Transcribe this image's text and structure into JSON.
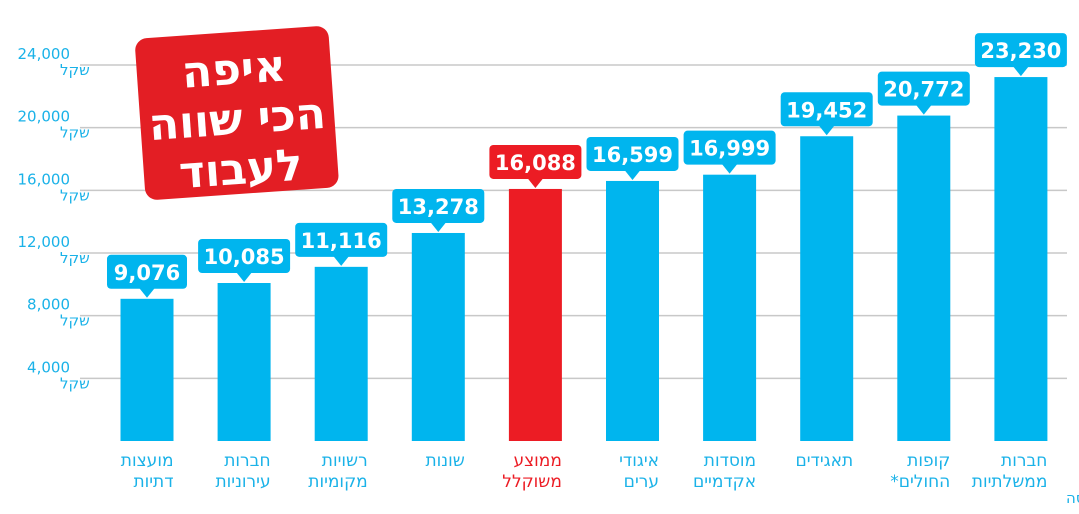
{
  "chart_data": {
    "type": "bar",
    "title": [
      "איפה",
      "הכי שווה",
      "לעבוד"
    ],
    "categories": [
      [
        "מועצות",
        "דתיות"
      ],
      [
        "חברות",
        "עירוניות"
      ],
      [
        "רשויות",
        "מקומיות"
      ],
      [
        "שונות"
      ],
      [
        "ממוצע",
        "משוקלל"
      ],
      [
        "איגודי",
        "ערים"
      ],
      [
        "מוסדות",
        "אקדמיים"
      ],
      [
        "תאגידים"
      ],
      [
        "קופות",
        "החולים*"
      ],
      [
        "חברות",
        "ממשלתיות"
      ]
    ],
    "values": [
      9076,
      10085,
      11116,
      13278,
      16088,
      16599,
      16999,
      19452,
      20772,
      23230
    ],
    "value_labels": [
      "9,076",
      "10,085",
      "11,116",
      "13,278",
      "16,088",
      "16,599",
      "16,999",
      "19,452",
      "20,772",
      "23,230"
    ],
    "highlight_index": 4,
    "ylim": [
      0,
      24000
    ],
    "yticks": [
      {
        "value": 24000,
        "label": "24,000",
        "unit": "שקל"
      },
      {
        "value": 20000,
        "label": "20,000",
        "unit": "שקל"
      },
      {
        "value": 16000,
        "label": "16,000",
        "unit": "שקל"
      },
      {
        "value": 12000,
        "label": "12,000",
        "unit": "שקל"
      },
      {
        "value": 8000,
        "label": "8,000",
        "unit": "שקל"
      },
      {
        "value": 4000,
        "label": "4,000",
        "unit": "שקל"
      }
    ],
    "grid": true,
    "footnote": "*והסתדרות מדיצינית הדסה",
    "colors": {
      "bar": "#00b5ee",
      "highlight": "#ec1c24",
      "label_box": "#00b5ee",
      "highlight_box": "#ec1c24",
      "title_box": "#e31e24",
      "category_text": "#1ab2e8",
      "highlight_text": "#ec1c24",
      "axis_text": "#1ab2e8"
    }
  }
}
